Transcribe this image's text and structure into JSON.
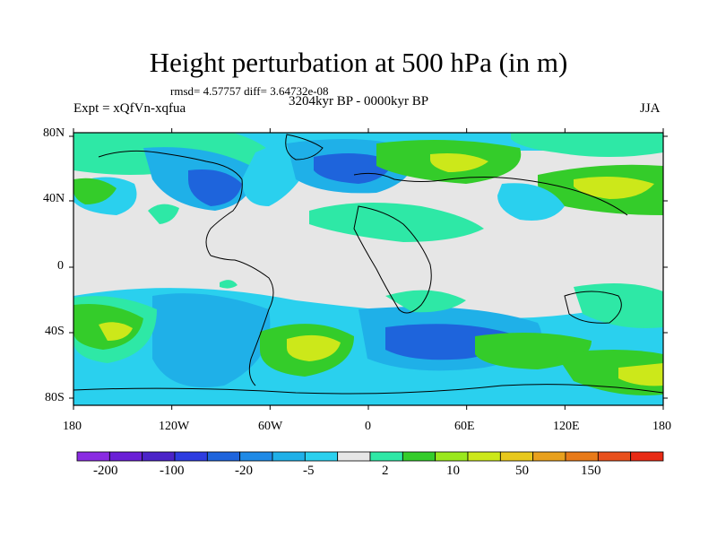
{
  "title": "Height perturbation at 500 hPa (in m)",
  "stats": "rmsd= 4.57757 diff= 3.64732e-08",
  "experiment": "Expt = xQfVn-xqfua",
  "period": "3204kyr BP - 0000kyr BP",
  "season": "JJA",
  "lat_labels": [
    "80N",
    "40N",
    "0",
    "40S",
    "80S"
  ],
  "lon_labels": [
    "180",
    "120W",
    "60W",
    "0",
    "60E",
    "120E",
    "180"
  ],
  "colorbar": {
    "labels": [
      "-200",
      "-100",
      "-20",
      "-5",
      "2",
      "10",
      "50",
      "150"
    ],
    "colors": [
      "#8a2be2",
      "#6a1fd6",
      "#4b23c8",
      "#2d3ce0",
      "#1e64dc",
      "#1f8ae6",
      "#1fb0e8",
      "#2ad0ee",
      "#e6e6e6",
      "#2ee8a6",
      "#34cc2a",
      "#9ae81c",
      "#cce81a",
      "#e8c81c",
      "#e8a01c",
      "#e87a18",
      "#e8501c",
      "#e82a14"
    ]
  },
  "palette": {
    "neutral": "#e6e6e6",
    "lightblue": "#2ad0ee",
    "blue": "#1fb0e8",
    "darkblue": "#1e64dc",
    "teal": "#2ee8a6",
    "green": "#34cc2a",
    "yellowgreen": "#cce81a"
  }
}
